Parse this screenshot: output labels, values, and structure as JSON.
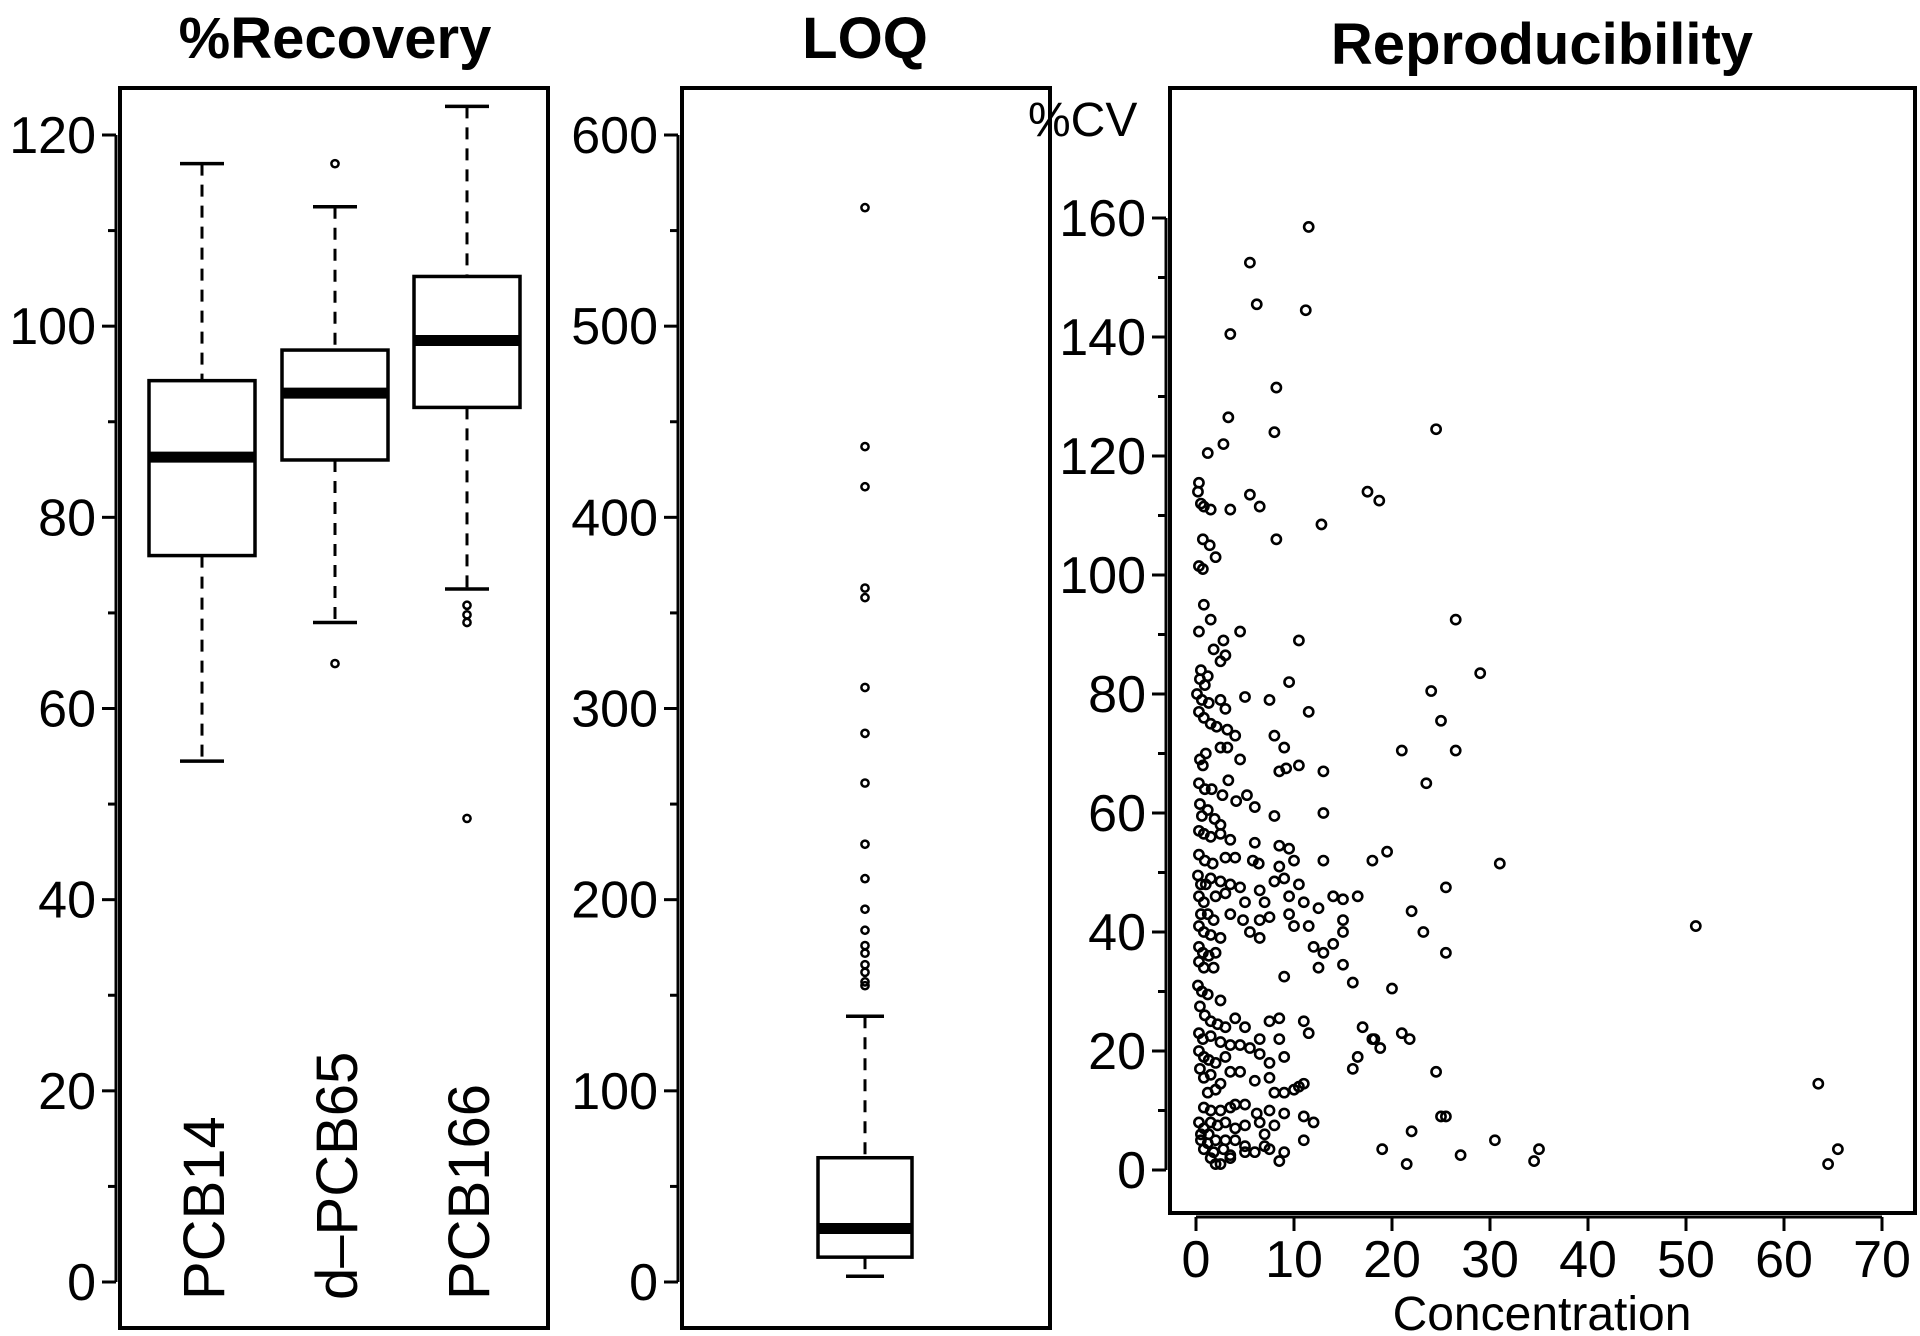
{
  "chart_data": [
    {
      "type": "boxplot",
      "title": "%Recovery",
      "xlabel": "",
      "ylabel": "",
      "ylim": [
        0,
        125
      ],
      "yticks": [
        0,
        20,
        40,
        60,
        80,
        100,
        120
      ],
      "grid": false,
      "categories": [
        "PCB14",
        "d–PCB65",
        "PCB166"
      ],
      "boxes": [
        {
          "name": "PCB14",
          "whisker_low": 54.5,
          "q1": 76,
          "median": 86.3,
          "q3": 94.3,
          "whisker_high": 117,
          "outliers": []
        },
        {
          "name": "d–PCB65",
          "whisker_low": 69,
          "q1": 86,
          "median": 93,
          "q3": 97.5,
          "whisker_high": 112.5,
          "outliers": [
            64.7,
            117
          ]
        },
        {
          "name": "PCB166",
          "whisker_low": 72.5,
          "q1": 91.5,
          "median": 98.5,
          "q3": 105.2,
          "whisker_high": 123,
          "outliers": [
            48.5,
            69,
            69.8,
            70.8
          ]
        }
      ]
    },
    {
      "type": "boxplot",
      "title": "LOQ",
      "xlabel": "",
      "ylabel": "",
      "ylim": [
        0,
        625
      ],
      "yticks": [
        0,
        100,
        200,
        300,
        400,
        500,
        600
      ],
      "grid": false,
      "boxes": [
        {
          "name": "LOQ",
          "whisker_low": 3,
          "q1": 13,
          "median": 28,
          "q3": 65,
          "whisker_high": 139,
          "outliers": [
            155,
            157,
            162,
            166,
            172,
            176,
            184,
            195,
            211,
            229,
            261,
            287,
            311,
            358,
            363,
            416,
            437,
            562
          ]
        }
      ]
    },
    {
      "type": "scatter",
      "title": "Reproducibility",
      "xlabel": "Concentration",
      "ylabel": "%CV",
      "xlim": [
        -3,
        72
      ],
      "ylim": [
        -7,
        175
      ],
      "xticks": [
        0,
        10,
        20,
        30,
        40,
        50,
        60,
        70
      ],
      "yticks": [
        0,
        20,
        40,
        60,
        80,
        100,
        120,
        140,
        160
      ],
      "grid": false,
      "points": [
        [
          11.5,
          158.5
        ],
        [
          5.5,
          152.5
        ],
        [
          11.2,
          144.5
        ],
        [
          6.2,
          145.5
        ],
        [
          3.5,
          140.5
        ],
        [
          8.2,
          131.5
        ],
        [
          24.5,
          124.5
        ],
        [
          3.3,
          126.5
        ],
        [
          8,
          124
        ],
        [
          0.3,
          115.5
        ],
        [
          0.2,
          114
        ],
        [
          2.8,
          122
        ],
        [
          1.2,
          120.5
        ],
        [
          0.5,
          112
        ],
        [
          1.5,
          111
        ],
        [
          0.8,
          111.5
        ],
        [
          5.5,
          113.5
        ],
        [
          6.5,
          111.5
        ],
        [
          3.5,
          111
        ],
        [
          17.5,
          114
        ],
        [
          18.7,
          112.5
        ],
        [
          12.8,
          108.5
        ],
        [
          8.2,
          106
        ],
        [
          0.7,
          106
        ],
        [
          1.4,
          105
        ],
        [
          2,
          103
        ],
        [
          0.3,
          101.5
        ],
        [
          0.7,
          101
        ],
        [
          0.8,
          95
        ],
        [
          0.3,
          90.5
        ],
        [
          1.5,
          92.5
        ],
        [
          4.5,
          90.5
        ],
        [
          2.8,
          89
        ],
        [
          10.5,
          89
        ],
        [
          1.8,
          87.5
        ],
        [
          3,
          86.5
        ],
        [
          2.5,
          85.5
        ],
        [
          0.5,
          84
        ],
        [
          26.5,
          92.5
        ],
        [
          29,
          83.5
        ],
        [
          1.2,
          83
        ],
        [
          0.4,
          82.5
        ],
        [
          0.9,
          81.5
        ],
        [
          9.5,
          82
        ],
        [
          0.1,
          80
        ],
        [
          0.6,
          79
        ],
        [
          1.3,
          78.5
        ],
        [
          2.5,
          79
        ],
        [
          3,
          77.5
        ],
        [
          5,
          79.5
        ],
        [
          7.5,
          79
        ],
        [
          11.5,
          77
        ],
        [
          24,
          80.5
        ],
        [
          25,
          75.5
        ],
        [
          0.3,
          77
        ],
        [
          0.8,
          76
        ],
        [
          1.5,
          75
        ],
        [
          2.1,
          74.5
        ],
        [
          3.2,
          74
        ],
        [
          4,
          73
        ],
        [
          8,
          73
        ],
        [
          9,
          71
        ],
        [
          2.5,
          71
        ],
        [
          3.2,
          71
        ],
        [
          1,
          70
        ],
        [
          0.4,
          69
        ],
        [
          0.7,
          68
        ],
        [
          4.5,
          69
        ],
        [
          9.2,
          67.5
        ],
        [
          10.5,
          68
        ],
        [
          8.5,
          67
        ],
        [
          13,
          67
        ],
        [
          21,
          70.5
        ],
        [
          26.5,
          70.5
        ],
        [
          23.5,
          65
        ],
        [
          0.3,
          65
        ],
        [
          0.9,
          64
        ],
        [
          1.6,
          64
        ],
        [
          3.3,
          65.5
        ],
        [
          2.7,
          63
        ],
        [
          4.1,
          62
        ],
        [
          5.2,
          63
        ],
        [
          6,
          61
        ],
        [
          0.4,
          61.5
        ],
        [
          0.6,
          59.5
        ],
        [
          1.2,
          60.5
        ],
        [
          1.9,
          59
        ],
        [
          2.5,
          58
        ],
        [
          8,
          59.5
        ],
        [
          13,
          60
        ],
        [
          0.3,
          57
        ],
        [
          0.8,
          56.5
        ],
        [
          1.5,
          56
        ],
        [
          2.5,
          56.5
        ],
        [
          3.5,
          55.5
        ],
        [
          6,
          55
        ],
        [
          8.5,
          54.5
        ],
        [
          9.5,
          54
        ],
        [
          19.5,
          53.5
        ],
        [
          0.3,
          53
        ],
        [
          0.9,
          52
        ],
        [
          1.7,
          51.5
        ],
        [
          3,
          52.5
        ],
        [
          4,
          52.5
        ],
        [
          5.8,
          52
        ],
        [
          6.4,
          51.5
        ],
        [
          8.5,
          51
        ],
        [
          10,
          52
        ],
        [
          13,
          52
        ],
        [
          18,
          52
        ],
        [
          31,
          51.5
        ],
        [
          0.2,
          49.5
        ],
        [
          0.5,
          48
        ],
        [
          1,
          48
        ],
        [
          1.5,
          49
        ],
        [
          2.5,
          48.5
        ],
        [
          3.5,
          48
        ],
        [
          4.5,
          47.5
        ],
        [
          6.5,
          47
        ],
        [
          8,
          48.5
        ],
        [
          9,
          49
        ],
        [
          10.5,
          48
        ],
        [
          25.5,
          47.5
        ],
        [
          0.3,
          46
        ],
        [
          0.8,
          45
        ],
        [
          2,
          46
        ],
        [
          3,
          46.5
        ],
        [
          5,
          45
        ],
        [
          7,
          45
        ],
        [
          9.5,
          46
        ],
        [
          11,
          45
        ],
        [
          12.5,
          44
        ],
        [
          14,
          46
        ],
        [
          15,
          45.5
        ],
        [
          16.5,
          46
        ],
        [
          0.5,
          43
        ],
        [
          1.2,
          43
        ],
        [
          1.8,
          42
        ],
        [
          3.5,
          43
        ],
        [
          4.8,
          42
        ],
        [
          6.5,
          42
        ],
        [
          7.5,
          42.5
        ],
        [
          9.5,
          43
        ],
        [
          10,
          41
        ],
        [
          11.5,
          41
        ],
        [
          15,
          42
        ],
        [
          22,
          43.5
        ],
        [
          0.3,
          41
        ],
        [
          0.8,
          40
        ],
        [
          1.5,
          39.5
        ],
        [
          2.5,
          39
        ],
        [
          5.5,
          40
        ],
        [
          6.5,
          39
        ],
        [
          15,
          40
        ],
        [
          23.2,
          40
        ],
        [
          51,
          41
        ],
        [
          0.3,
          37.5
        ],
        [
          0.7,
          36.5
        ],
        [
          1.3,
          36
        ],
        [
          2,
          36.5
        ],
        [
          12,
          37.5
        ],
        [
          13,
          36.5
        ],
        [
          14,
          38
        ],
        [
          0.3,
          35
        ],
        [
          0.8,
          34
        ],
        [
          1.8,
          34
        ],
        [
          12.5,
          34
        ],
        [
          15,
          34.5
        ],
        [
          9,
          32.5
        ],
        [
          16,
          31.5
        ],
        [
          20,
          30.5
        ],
        [
          25.5,
          36.5
        ],
        [
          0.2,
          31
        ],
        [
          0.6,
          30
        ],
        [
          1.2,
          29.5
        ],
        [
          2.5,
          28.5
        ],
        [
          0.4,
          27.5
        ],
        [
          0.9,
          26
        ],
        [
          1.5,
          25
        ],
        [
          2.2,
          24.5
        ],
        [
          3,
          24
        ],
        [
          4,
          25.5
        ],
        [
          5,
          24
        ],
        [
          7.5,
          25
        ],
        [
          8.5,
          25.5
        ],
        [
          11,
          25
        ],
        [
          0.3,
          23
        ],
        [
          0.7,
          22
        ],
        [
          1.5,
          22.5
        ],
        [
          2.5,
          21.5
        ],
        [
          3.5,
          21
        ],
        [
          4.5,
          21
        ],
        [
          5.5,
          20.5
        ],
        [
          6.5,
          22
        ],
        [
          8.5,
          22
        ],
        [
          11.5,
          23
        ],
        [
          17,
          24
        ],
        [
          18,
          22
        ],
        [
          18.8,
          20.5
        ],
        [
          18.2,
          22
        ],
        [
          21,
          23
        ],
        [
          21.8,
          22
        ],
        [
          0.3,
          20
        ],
        [
          0.8,
          19
        ],
        [
          1.3,
          18.5
        ],
        [
          2,
          18
        ],
        [
          3,
          19
        ],
        [
          3.5,
          16.5
        ],
        [
          4.5,
          16.5
        ],
        [
          6.5,
          19.5
        ],
        [
          7.5,
          18
        ],
        [
          9,
          19
        ],
        [
          0.4,
          17
        ],
        [
          0.8,
          15.5
        ],
        [
          1.5,
          16
        ],
        [
          2.5,
          14.5
        ],
        [
          6,
          15
        ],
        [
          7.5,
          15.5
        ],
        [
          16.5,
          19
        ],
        [
          16,
          17
        ],
        [
          24.5,
          16.5
        ],
        [
          1.2,
          13
        ],
        [
          2,
          13.5
        ],
        [
          8,
          13
        ],
        [
          9,
          13
        ],
        [
          10.5,
          14
        ],
        [
          11,
          14.5
        ],
        [
          10,
          13.5
        ],
        [
          63.5,
          14.5
        ],
        [
          0.8,
          10.5
        ],
        [
          1.5,
          10
        ],
        [
          2.5,
          10
        ],
        [
          4,
          11
        ],
        [
          5,
          11
        ],
        [
          6.2,
          9.5
        ],
        [
          3.5,
          10.5
        ],
        [
          7.5,
          10
        ],
        [
          9,
          9.5
        ],
        [
          11,
          9
        ],
        [
          12,
          8
        ],
        [
          25,
          9
        ],
        [
          25.5,
          9
        ],
        [
          0.3,
          8
        ],
        [
          0.8,
          7
        ],
        [
          1.5,
          8
        ],
        [
          2.2,
          7.5
        ],
        [
          3,
          8
        ],
        [
          4,
          7
        ],
        [
          5,
          7.5
        ],
        [
          6.5,
          8
        ],
        [
          0.5,
          6
        ],
        [
          1.3,
          6
        ],
        [
          7,
          6
        ],
        [
          8,
          7.5
        ],
        [
          0.5,
          5
        ],
        [
          1.2,
          4.5
        ],
        [
          2,
          5
        ],
        [
          3,
          5
        ],
        [
          4,
          5
        ],
        [
          5,
          4
        ],
        [
          7,
          4
        ],
        [
          11,
          5
        ],
        [
          22,
          6.5
        ],
        [
          30.5,
          5
        ],
        [
          0.8,
          3.5
        ],
        [
          1.8,
          3
        ],
        [
          2.8,
          3.5
        ],
        [
          3.5,
          2.5
        ],
        [
          5,
          3
        ],
        [
          6,
          3
        ],
        [
          7.5,
          3.5
        ],
        [
          9,
          3
        ],
        [
          19,
          3.5
        ],
        [
          27,
          2.5
        ],
        [
          35,
          3.5
        ],
        [
          65.5,
          3.5
        ],
        [
          1.5,
          2
        ],
        [
          2.5,
          1
        ],
        [
          3.5,
          2
        ],
        [
          8.5,
          1.5
        ],
        [
          2,
          1
        ],
        [
          21.5,
          1
        ],
        [
          34.5,
          1.5
        ],
        [
          64.5,
          1
        ]
      ]
    }
  ]
}
